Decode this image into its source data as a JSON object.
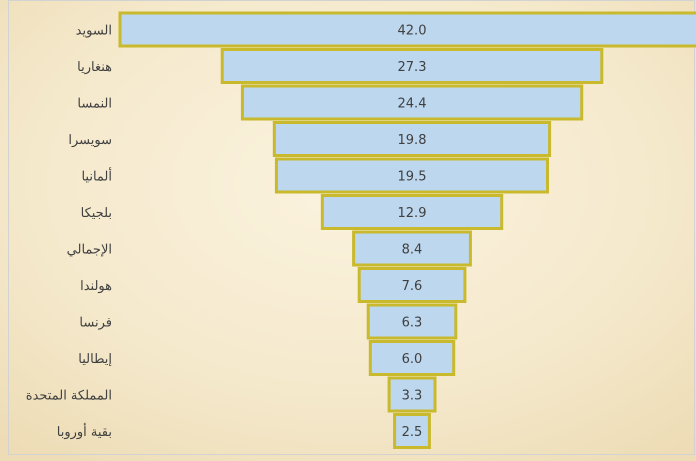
{
  "chart_data": {
    "type": "bar",
    "orientation": "horizontal-funnel",
    "categories": [
      "السويد",
      "هنغاريا",
      "النمسا",
      "سويسرا",
      "ألمانيا",
      "بلجيكا",
      "الإجمالي",
      "هولندا",
      "فرنسا",
      "إيطاليا",
      "المملكة المتحدة",
      "بقية أوروبا"
    ],
    "series": [
      {
        "values": [
          42.0,
          27.3,
          24.4,
          19.8,
          19.5,
          12.9,
          8.4,
          7.6,
          6.3,
          6.0,
          3.3,
          2.5
        ]
      }
    ],
    "value_labels": [
      "42.0",
      "27.3",
      "24.4",
      "19.8",
      "19.5",
      "12.9",
      "8.4",
      "7.6",
      "6.3",
      "6.0",
      "3.3",
      "2.5"
    ],
    "xlim": [
      0,
      42
    ],
    "grid": false,
    "legend": "none",
    "colors": {
      "bar_fill": "#bdd7ee",
      "bar_border": "#c8b92d",
      "text": "#404040",
      "background": "#f3e6c6",
      "frame_border": "#d2d2d2"
    }
  }
}
